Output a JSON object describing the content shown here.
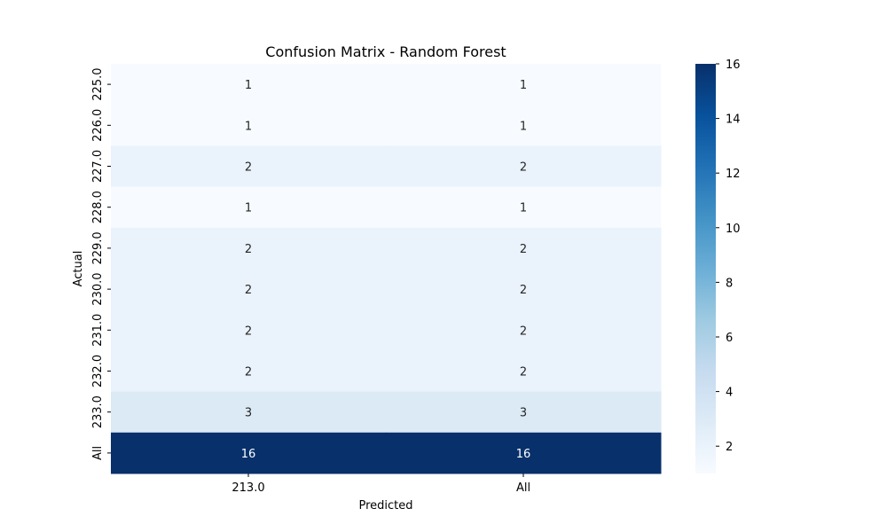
{
  "chart_data": {
    "type": "heatmap",
    "title": "Confusion Matrix - Random Forest",
    "xlabel": "Predicted",
    "ylabel": "Actual",
    "x_categories": [
      "213.0",
      "All"
    ],
    "y_categories": [
      "225.0",
      "226.0",
      "227.0",
      "228.0",
      "229.0",
      "230.0",
      "231.0",
      "232.0",
      "233.0",
      "All"
    ],
    "values": [
      [
        1,
        1
      ],
      [
        1,
        1
      ],
      [
        2,
        2
      ],
      [
        1,
        1
      ],
      [
        2,
        2
      ],
      [
        2,
        2
      ],
      [
        2,
        2
      ],
      [
        2,
        2
      ],
      [
        3,
        3
      ],
      [
        16,
        16
      ]
    ],
    "colorbar": {
      "min": 1,
      "max": 16,
      "ticks": [
        2,
        4,
        6,
        8,
        10,
        12,
        14,
        16
      ],
      "colormap": "Blues"
    }
  }
}
